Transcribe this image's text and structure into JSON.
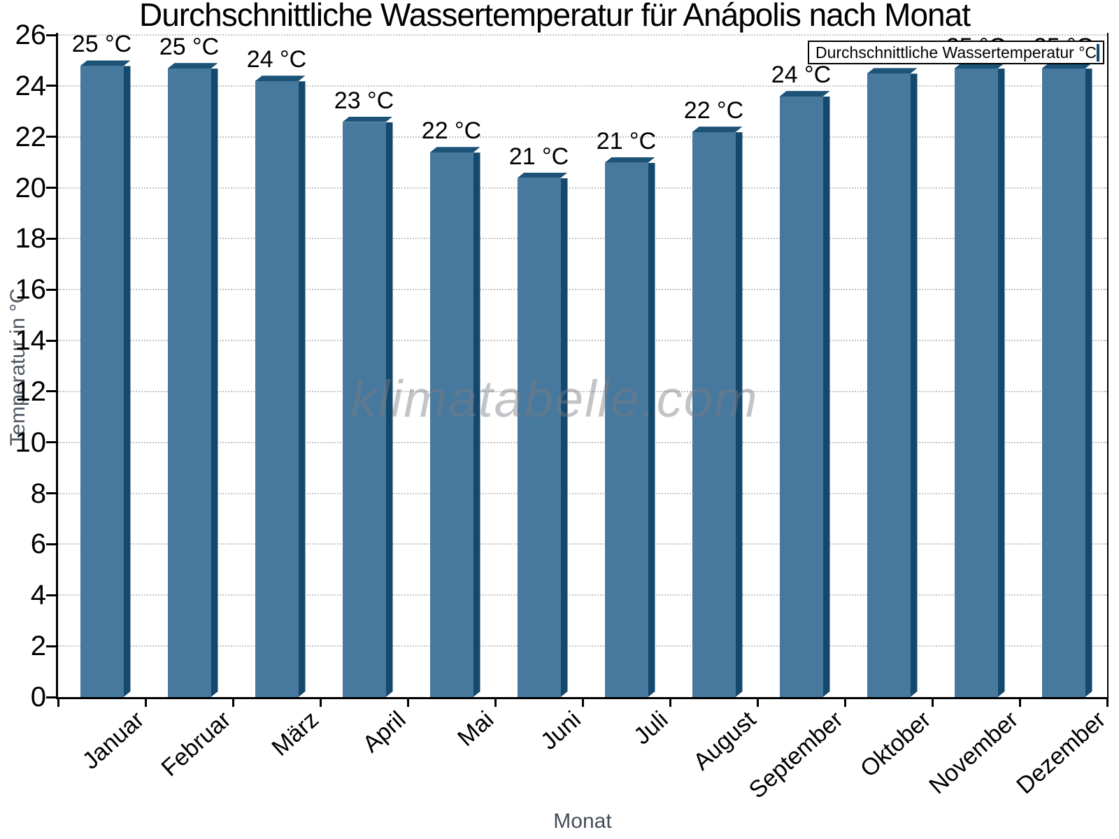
{
  "title": "Durchschnittliche Wassertemperatur für Anápolis nach Monat",
  "watermark": "klimatabelle.com",
  "legend": {
    "label": "Durchschnittliche Wassertemperatur °C"
  },
  "chart_data": {
    "type": "bar",
    "title": "Durchschnittliche Wassertemperatur für Anápolis nach Monat",
    "xlabel": "Monat",
    "ylabel": "Temperatur in °C",
    "ylim": [
      0,
      26
    ],
    "yticks": [
      0,
      2,
      4,
      6,
      8,
      10,
      12,
      14,
      16,
      18,
      20,
      22,
      24,
      26
    ],
    "grid": "dotted horizontal",
    "legend_position": "top-right",
    "categories": [
      "Januar",
      "Februar",
      "März",
      "April",
      "Mai",
      "Juni",
      "Juli",
      "August",
      "September",
      "Oktober",
      "November",
      "Dezember"
    ],
    "series": [
      {
        "name": "Durchschnittliche Wassertemperatur °C",
        "values": [
          25.0,
          24.9,
          24.4,
          22.8,
          21.6,
          20.6,
          21.2,
          22.4,
          23.8,
          24.7,
          24.9,
          24.9
        ],
        "labels": [
          "25 °C",
          "25 °C",
          "24 °C",
          "23 °C",
          "22 °C",
          "21 °C",
          "21 °C",
          "22 °C",
          "24 °C",
          "25 °C",
          "25 °C",
          "25 °C"
        ]
      }
    ],
    "colors": {
      "bar_face": "#47789D",
      "bar_side": "#14486C",
      "bar_top": "#1E5378",
      "gridline": "#C4C4C4",
      "axis": "#000000",
      "axis_title": "#4E5862",
      "watermark": "#C3C3C3"
    }
  }
}
